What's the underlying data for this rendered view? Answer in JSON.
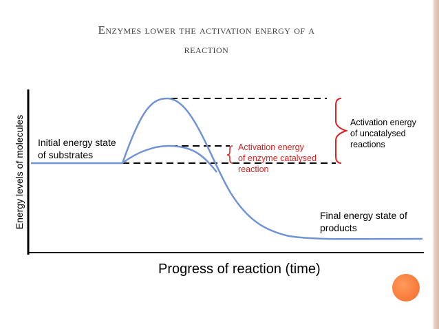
{
  "title": {
    "line1": "Enzymes lower the activation energy of a",
    "line2": "reaction"
  },
  "axes": {
    "y_label": "Energy levels of molecules",
    "x_label": "Progress of reaction (time)"
  },
  "labels": {
    "initial_line1": "Initial energy state",
    "initial_line2": "of substrates",
    "enzyme_line1": "Activation energy",
    "enzyme_line2": "of enzyme catalysed",
    "enzyme_line3": "reaction",
    "uncat_line1": "Activation energy",
    "uncat_line2": "of uncatalysed",
    "uncat_line3": "reactions",
    "final_line1": "Final energy state of",
    "final_line2": "products"
  },
  "colors": {
    "curve": "#6f93d6",
    "enzyme_text": "#e02020",
    "brace": "#e02020",
    "accent": "#f36a2a"
  }
}
